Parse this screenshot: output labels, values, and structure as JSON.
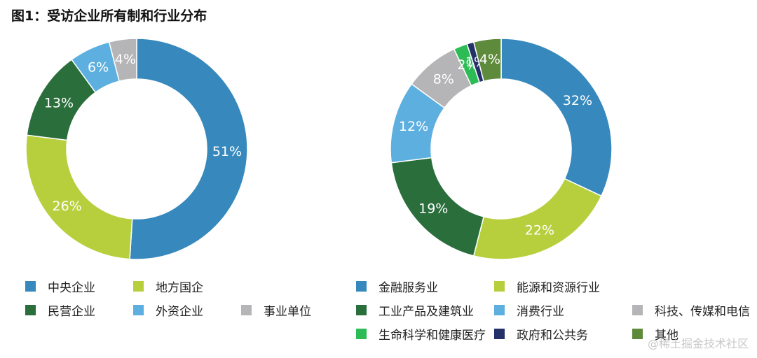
{
  "title": "图1：受访企业所有制和行业分布",
  "watermark": "@稀土掘金技术社区",
  "chart_data": [
    {
      "type": "pie",
      "subtype": "donut",
      "title": "",
      "start_angle_deg": 0,
      "direction": "clockwise",
      "categories": [
        "中央企业",
        "地方国企",
        "民营企业",
        "外资企业",
        "事业单位"
      ],
      "values": [
        51,
        26,
        13,
        6,
        4
      ],
      "labels": [
        "51%",
        "26%",
        "13%",
        "6%",
        "4%"
      ],
      "colors": [
        "#3789bd",
        "#b8cf3d",
        "#2a6e3c",
        "#5dafe0",
        "#b5b5b7"
      ],
      "legend_rows": [
        [
          0,
          1
        ],
        [
          2,
          3,
          4
        ]
      ],
      "legend_position": "bottom"
    },
    {
      "type": "pie",
      "subtype": "donut",
      "title": "",
      "start_angle_deg": 0,
      "direction": "clockwise",
      "categories": [
        "金融服务业",
        "能源和资源行业",
        "工业产品及建筑业",
        "消费行业",
        "科技、传媒和电信",
        "生命科学和健康医疗",
        "政府和公共务",
        "其他"
      ],
      "values": [
        32,
        22,
        19,
        12,
        8,
        2,
        1,
        4
      ],
      "labels": [
        "32%",
        "22%",
        "19%",
        "12%",
        "8%",
        "2%",
        "1%",
        "4%"
      ],
      "colors": [
        "#3789bd",
        "#b8cf3d",
        "#2a6e3c",
        "#5dafe0",
        "#b5b5b7",
        "#2dbb55",
        "#24306a",
        "#5e8a3b"
      ],
      "legend_rows": [
        [
          0,
          1
        ],
        [
          2,
          3,
          4
        ],
        [
          5,
          6,
          7
        ]
      ],
      "legend_position": "bottom"
    }
  ]
}
